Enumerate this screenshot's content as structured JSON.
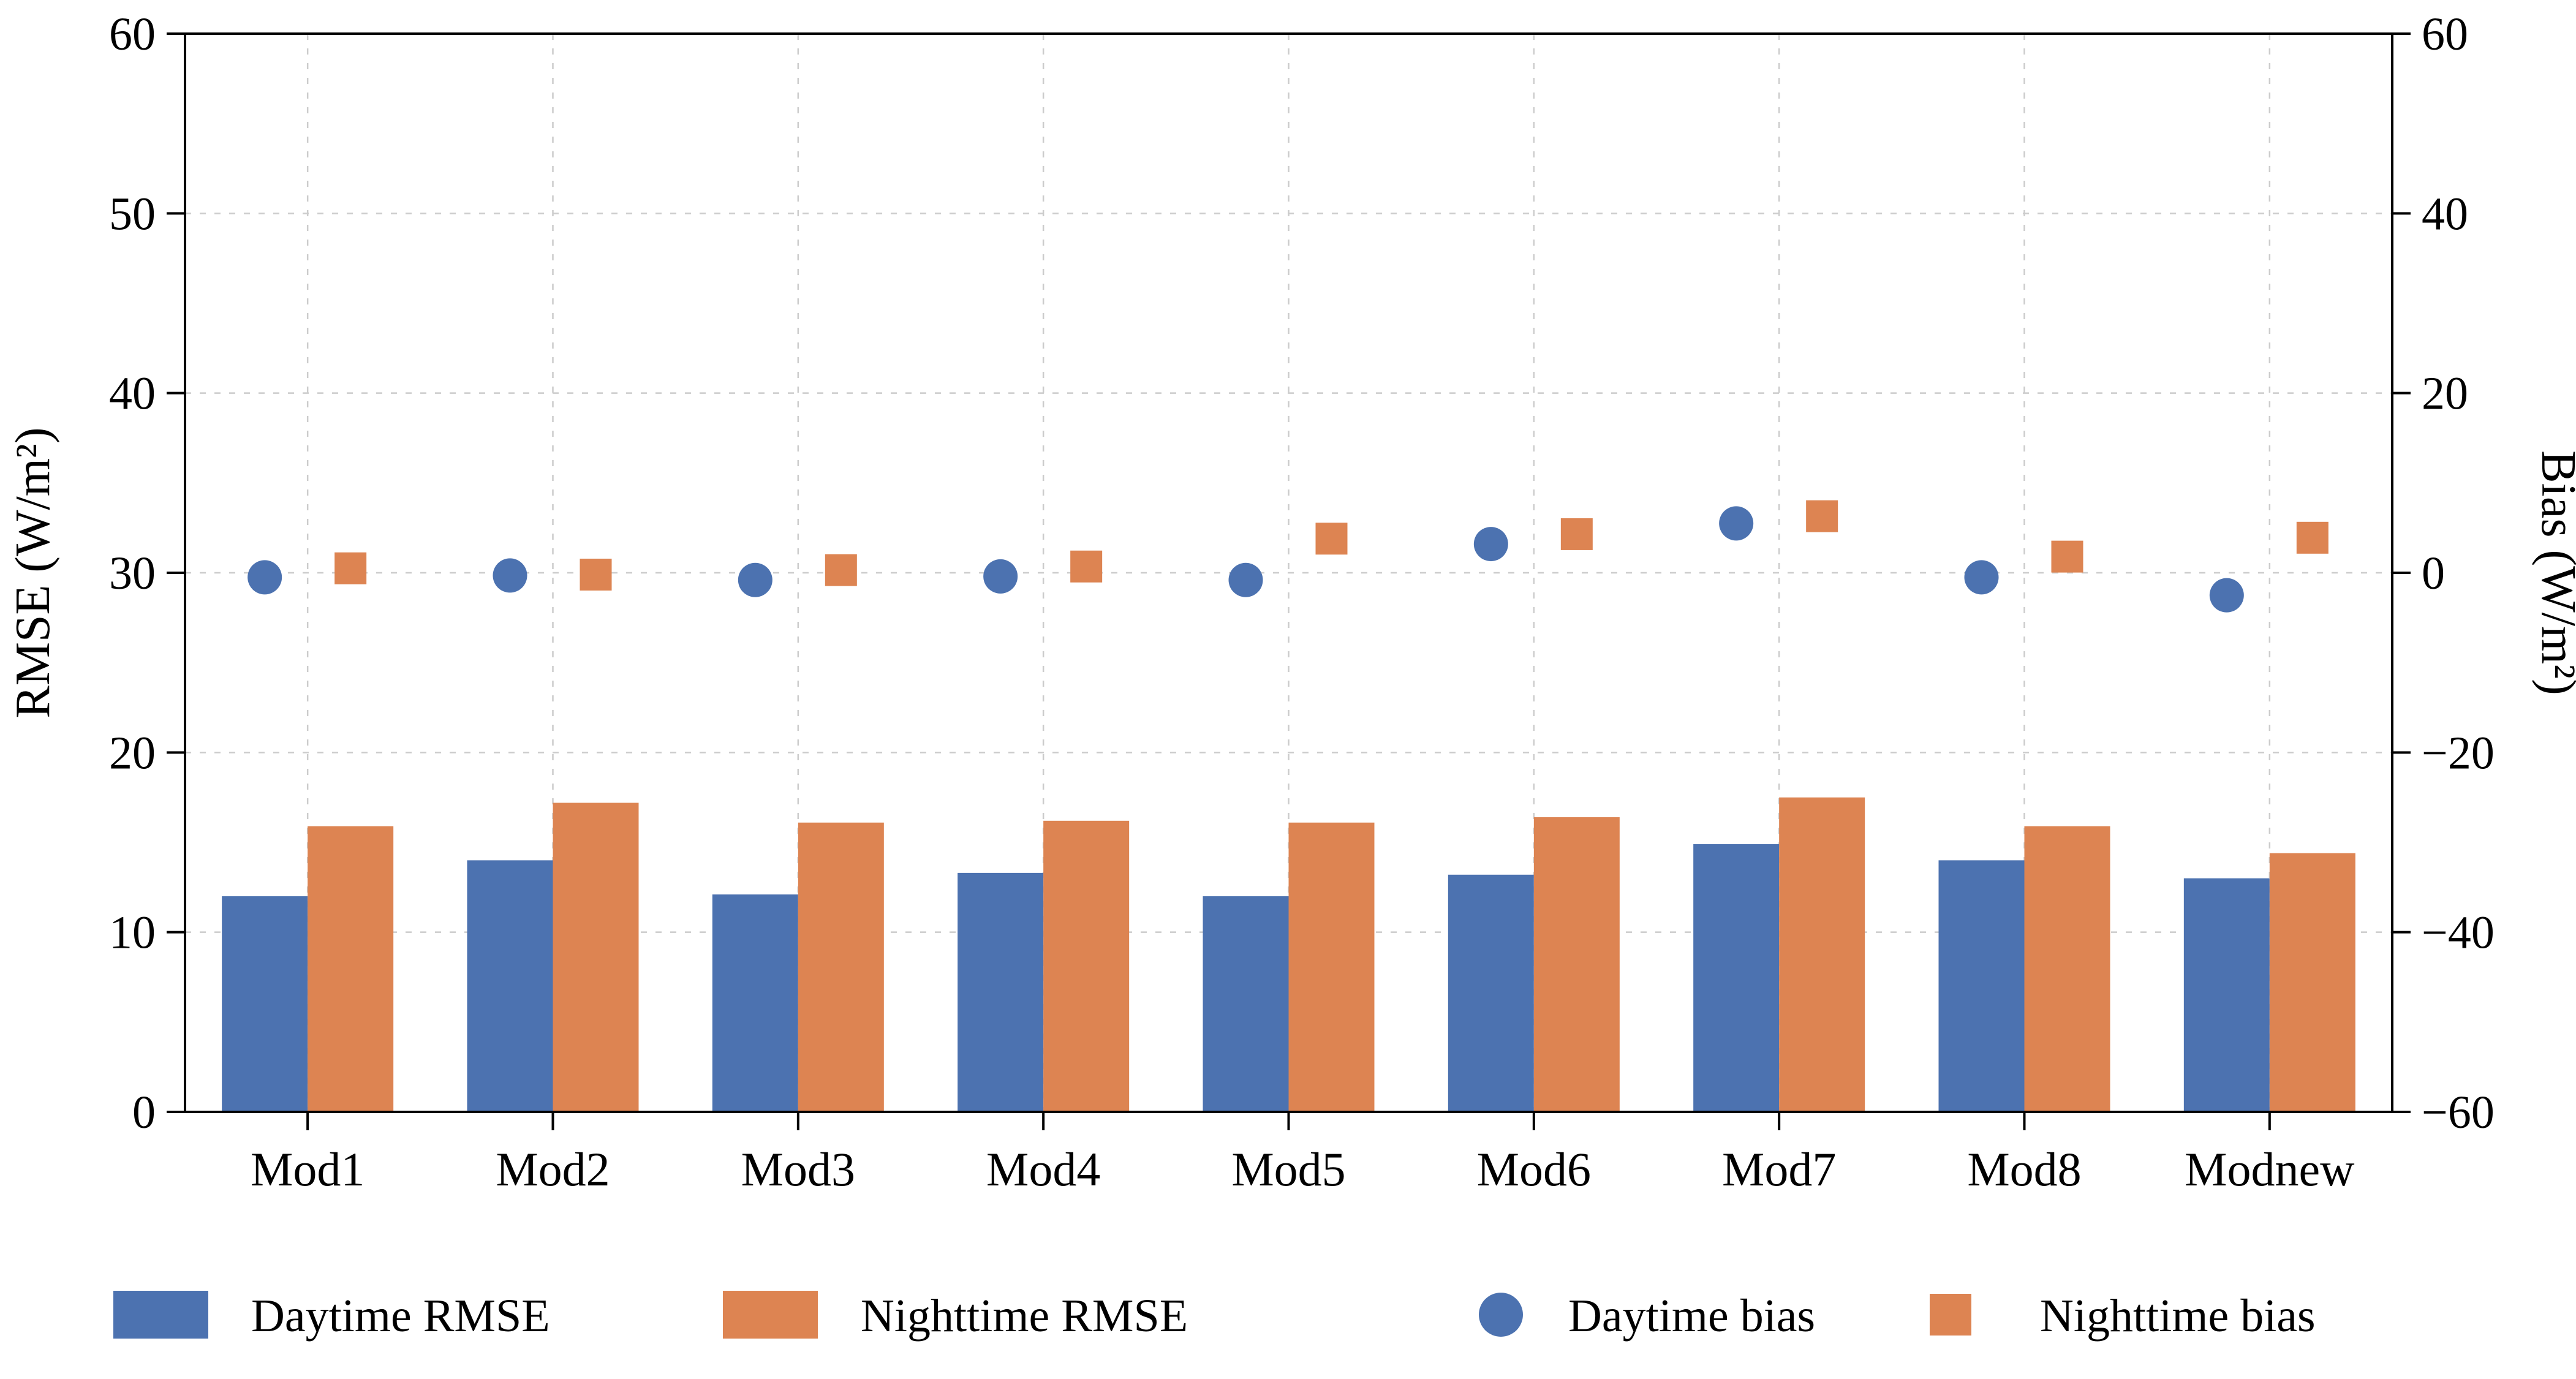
{
  "chart_data": {
    "type": "bar",
    "categories": [
      "Mod1",
      "Mod2",
      "Mod3",
      "Mod4",
      "Mod5",
      "Mod6",
      "Mod7",
      "Mod8",
      "Modnew"
    ],
    "series": [
      {
        "name": "Daytime RMSE",
        "render": "bar",
        "axis": "left",
        "color": "#4C72B0",
        "values": [
          12.0,
          14.0,
          12.1,
          13.3,
          12.0,
          13.2,
          14.9,
          14.0,
          13.0
        ]
      },
      {
        "name": "Nighttime RMSE",
        "render": "bar",
        "axis": "left",
        "color": "#DD8452",
        "values": [
          15.9,
          17.2,
          16.1,
          16.2,
          16.1,
          16.4,
          17.5,
          15.9,
          14.4
        ]
      },
      {
        "name": "Daytime bias",
        "render": "scatter",
        "marker": "circle",
        "axis": "right",
        "color": "#4C72B0",
        "values": [
          -0.5,
          -0.3,
          -0.8,
          -0.4,
          -0.8,
          3.2,
          5.5,
          -0.5,
          -2.5
        ]
      },
      {
        "name": "Nighttime bias",
        "render": "scatter",
        "marker": "square",
        "axis": "right",
        "color": "#DD8452",
        "values": [
          0.5,
          -0.2,
          0.3,
          0.7,
          3.8,
          4.3,
          6.3,
          1.8,
          3.9
        ]
      }
    ],
    "left_axis": {
      "label": "RMSE (W/m²)",
      "min": 0,
      "max": 60,
      "ticks": [
        0,
        10,
        20,
        30,
        40,
        50,
        60
      ]
    },
    "right_axis": {
      "label": "Bias (W/m²)",
      "min": -60,
      "max": 60,
      "ticks": [
        -60,
        -40,
        -20,
        0,
        20,
        40,
        60
      ]
    },
    "grid": true,
    "grid_color": "#cccccc",
    "legend_position": "bottom"
  }
}
